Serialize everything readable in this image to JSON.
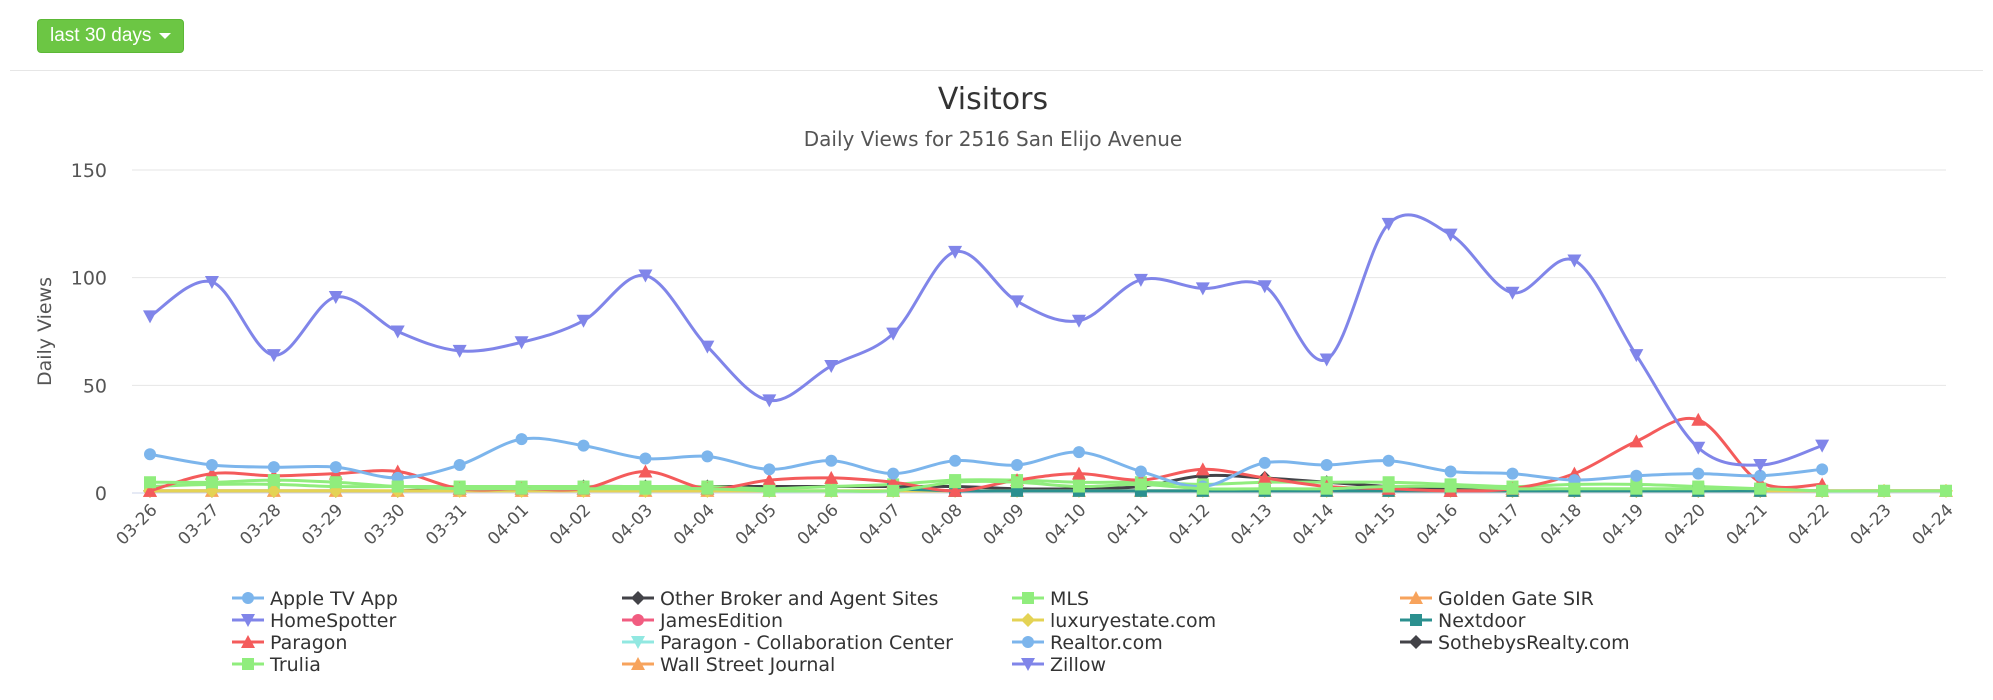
{
  "controls": {
    "range_label": "last 30 days"
  },
  "chart_data": {
    "type": "line",
    "title": "Visitors",
    "subtitle": "Daily Views for 2516 San Elijo Avenue",
    "xlabel": "",
    "ylabel": "Daily Views",
    "ylim": [
      0,
      150
    ],
    "yticks": [
      0,
      50,
      100,
      150
    ],
    "categories": [
      "03-26",
      "03-27",
      "03-28",
      "03-29",
      "03-30",
      "03-31",
      "04-01",
      "04-02",
      "04-03",
      "04-04",
      "04-05",
      "04-06",
      "04-07",
      "04-08",
      "04-09",
      "04-10",
      "04-11",
      "04-12",
      "04-13",
      "04-14",
      "04-15",
      "04-16",
      "04-17",
      "04-18",
      "04-19",
      "04-20",
      "04-21",
      "04-22",
      "04-23",
      "04-24"
    ],
    "series": [
      {
        "name": "Apple TV App",
        "color": "#7cb5ec",
        "marker": "circle",
        "values": [
          null,
          null,
          null,
          null,
          null,
          null,
          null,
          null,
          null,
          null,
          null,
          null,
          null,
          null,
          null,
          null,
          null,
          null,
          null,
          null,
          null,
          null,
          null,
          null,
          null,
          null,
          null,
          null,
          null,
          null
        ]
      },
      {
        "name": "Other Broker and Agent Sites",
        "color": "#434348",
        "marker": "diamond",
        "values": [
          1,
          1,
          1,
          1,
          1,
          2,
          2,
          3,
          3,
          3,
          3,
          3,
          3,
          3,
          2,
          2,
          3,
          8,
          7,
          5,
          3,
          2,
          1,
          1,
          1,
          1,
          1,
          1,
          null,
          null
        ]
      },
      {
        "name": "MLS",
        "color": "#90ed7d",
        "marker": "square",
        "values": [
          3,
          4,
          4,
          3,
          3,
          3,
          3,
          3,
          3,
          3,
          2,
          3,
          4,
          6,
          6,
          5,
          5,
          4,
          5,
          5,
          5,
          4,
          3,
          4,
          4,
          3,
          2,
          1,
          1,
          1
        ]
      },
      {
        "name": "Golden Gate SIR",
        "color": "#f7a35c",
        "marker": "triangle",
        "values": [
          1,
          1,
          1,
          1,
          1,
          1,
          1,
          1,
          1,
          1,
          1,
          1,
          1,
          1,
          1,
          1,
          1,
          1,
          1,
          1,
          1,
          1,
          1,
          1,
          1,
          1,
          1,
          1,
          1,
          1
        ]
      },
      {
        "name": "HomeSpotter",
        "color": "#8085e9",
        "marker": "triangle-down",
        "values": [
          null,
          null,
          null,
          null,
          null,
          null,
          null,
          null,
          null,
          null,
          null,
          null,
          null,
          null,
          null,
          null,
          null,
          null,
          null,
          null,
          null,
          null,
          null,
          null,
          null,
          null,
          null,
          null,
          null,
          null
        ]
      },
      {
        "name": "JamesEdition",
        "color": "#f15c80",
        "marker": "circle",
        "values": [
          null,
          null,
          null,
          null,
          null,
          null,
          null,
          null,
          null,
          null,
          null,
          null,
          null,
          null,
          null,
          null,
          null,
          null,
          null,
          null,
          null,
          null,
          null,
          null,
          null,
          null,
          1,
          1,
          1,
          1
        ]
      },
      {
        "name": "luxuryestate.com",
        "color": "#e4d354",
        "marker": "diamond",
        "values": [
          1,
          1,
          1,
          1,
          1,
          1,
          1,
          1,
          1,
          1,
          1,
          1,
          1,
          1,
          1,
          1,
          1,
          1,
          1,
          1,
          1,
          1,
          1,
          1,
          1,
          1,
          1,
          1,
          1,
          1
        ]
      },
      {
        "name": "Nextdoor",
        "color": "#2b908f",
        "marker": "square",
        "values": [
          null,
          null,
          null,
          null,
          null,
          null,
          null,
          null,
          null,
          null,
          null,
          null,
          2,
          1,
          1,
          1,
          1,
          1,
          1,
          1,
          1,
          1,
          1,
          1,
          1,
          1,
          1,
          null,
          null,
          null
        ]
      },
      {
        "name": "Paragon",
        "color": "#f45b5b",
        "marker": "triangle",
        "values": [
          1,
          9,
          8,
          9,
          10,
          2,
          2,
          2,
          10,
          2,
          6,
          7,
          5,
          1,
          6,
          9,
          6,
          11,
          7,
          3,
          2,
          1,
          2,
          9,
          24,
          34,
          5,
          4,
          null,
          null
        ]
      },
      {
        "name": "Paragon - Collaboration Center",
        "color": "#91e8e1",
        "marker": "triangle-down",
        "values": [
          null,
          null,
          null,
          null,
          null,
          null,
          null,
          null,
          null,
          null,
          null,
          null,
          null,
          null,
          null,
          null,
          null,
          null,
          null,
          null,
          null,
          null,
          null,
          null,
          null,
          null,
          null,
          null,
          null,
          null
        ]
      },
      {
        "name": "Realtor.com",
        "color": "#7cb5ec",
        "marker": "circle",
        "values": [
          18,
          13,
          12,
          12,
          7,
          13,
          25,
          22,
          16,
          17,
          11,
          15,
          9,
          15,
          13,
          19,
          10,
          3,
          14,
          13,
          15,
          10,
          9,
          6,
          8,
          9,
          8,
          11,
          null,
          null
        ]
      },
      {
        "name": "SothebysRealty.com",
        "color": "#434348",
        "marker": "diamond",
        "values": [
          null,
          null,
          null,
          null,
          null,
          null,
          null,
          null,
          null,
          null,
          null,
          null,
          null,
          null,
          null,
          null,
          null,
          null,
          null,
          null,
          null,
          null,
          null,
          null,
          null,
          null,
          null,
          null,
          null,
          null
        ]
      },
      {
        "name": "Trulia",
        "color": "#90ed7d",
        "marker": "square",
        "values": [
          5,
          5,
          6,
          5,
          3,
          2,
          2,
          2,
          2,
          2,
          1,
          1,
          1,
          5,
          5,
          3,
          4,
          2,
          2,
          2,
          3,
          3,
          2,
          2,
          2,
          2,
          2,
          1,
          1,
          1
        ]
      },
      {
        "name": "Wall Street Journal",
        "color": "#f7a35c",
        "marker": "triangle",
        "values": [
          null,
          null,
          null,
          null,
          null,
          null,
          null,
          null,
          null,
          null,
          null,
          null,
          null,
          null,
          null,
          null,
          null,
          null,
          null,
          null,
          null,
          null,
          null,
          null,
          null,
          null,
          null,
          null,
          null,
          null
        ]
      },
      {
        "name": "Zillow",
        "color": "#8085e9",
        "marker": "triangle-down",
        "values": [
          82,
          98,
          64,
          91,
          75,
          66,
          70,
          80,
          101,
          68,
          43,
          59,
          74,
          112,
          89,
          80,
          99,
          95,
          96,
          62,
          125,
          120,
          93,
          108,
          64,
          21,
          13,
          22,
          null,
          null
        ]
      }
    ],
    "legend": "bottom"
  }
}
